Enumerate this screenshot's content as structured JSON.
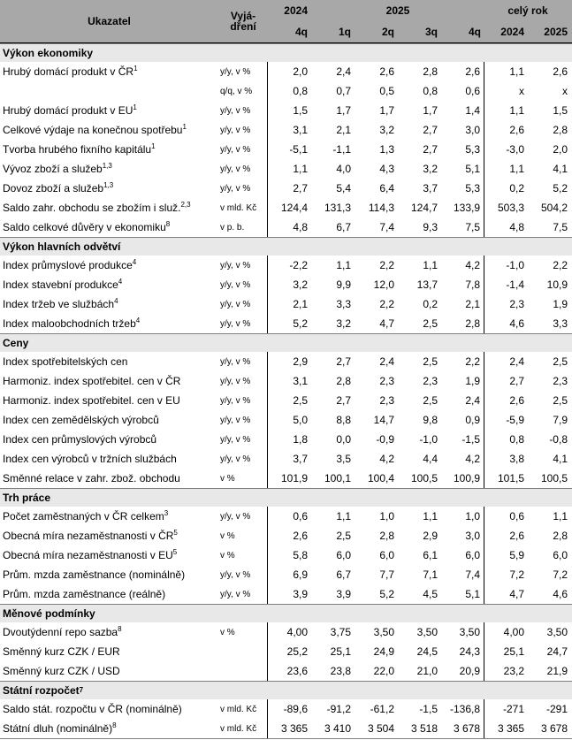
{
  "colors": {
    "header_bg": "#a8a8a8",
    "section_bg": "#e8e8e8",
    "grid_line": "#000000",
    "section_line": "#7f7f7f",
    "text": "#000000"
  },
  "header": {
    "col_indicator": "Ukazatel",
    "col_unit_line1": "Vyjá-",
    "col_unit_line2": "dření",
    "year_left": "2024",
    "year_mid": "2025",
    "year_right": "celý rok",
    "subcols": [
      "4q",
      "1q",
      "2q",
      "3q",
      "4q",
      "2024",
      "2025"
    ]
  },
  "sections": [
    {
      "title": "Výkon ekonomiky",
      "sup": "",
      "rows": [
        {
          "label": "Hrubý domácí produkt v ČR",
          "sup": "1",
          "unit": "y/y, v %",
          "values": [
            "2,0",
            "2,4",
            "2,6",
            "2,8",
            "2,6",
            "1,1",
            "2,6"
          ]
        },
        {
          "label": "",
          "sup": "",
          "unit": "q/q, v %",
          "values": [
            "0,8",
            "0,7",
            "0,5",
            "0,8",
            "0,6",
            "x",
            "x"
          ]
        },
        {
          "label": "Hrubý domácí produkt v EU",
          "sup": "1",
          "unit": "y/y, v %",
          "values": [
            "1,5",
            "1,7",
            "1,7",
            "1,7",
            "1,4",
            "1,1",
            "1,5"
          ]
        },
        {
          "label": "Celkové výdaje na konečnou spotřebu",
          "sup": "1",
          "unit": "y/y, v %",
          "values": [
            "3,1",
            "2,1",
            "3,2",
            "2,7",
            "3,0",
            "2,6",
            "2,8"
          ]
        },
        {
          "label": "Tvorba hrubého fixního kapitálu",
          "sup": "1",
          "unit": "y/y, v %",
          "values": [
            "-5,1",
            "-1,1",
            "1,3",
            "2,7",
            "5,3",
            "-3,0",
            "2,0"
          ]
        },
        {
          "label": "Vývoz zboží a služeb",
          "sup": "1,3",
          "unit": "y/y, v %",
          "values": [
            "1,1",
            "4,0",
            "4,3",
            "3,2",
            "5,1",
            "1,1",
            "4,1"
          ]
        },
        {
          "label": "Dovoz zboží a služeb",
          "sup": "1,3",
          "unit": "y/y, v %",
          "values": [
            "2,7",
            "5,4",
            "6,4",
            "3,7",
            "5,3",
            "0,2",
            "5,2"
          ]
        },
        {
          "label": "Saldo zahr. obchodu se zbožím i služ.",
          "sup": "2,3",
          "unit": "v mld. Kč",
          "values": [
            "124,4",
            "131,3",
            "114,3",
            "124,7",
            "133,9",
            "503,3",
            "504,2"
          ]
        },
        {
          "label": "Saldo celkové důvěry v ekonomiku",
          "sup": "8",
          "unit": "v p. b.",
          "values": [
            "4,8",
            "6,7",
            "7,4",
            "9,3",
            "7,5",
            "4,8",
            "7,5"
          ]
        }
      ]
    },
    {
      "title": "Výkon hlavních odvětví",
      "sup": "",
      "rows": [
        {
          "label": "Index průmyslové produkce",
          "sup": "4",
          "unit": "y/y, v %",
          "values": [
            "-2,2",
            "1,1",
            "2,2",
            "1,1",
            "4,2",
            "-1,0",
            "2,2"
          ]
        },
        {
          "label": "Index stavební produkce",
          "sup": "4",
          "unit": "y/y, v %",
          "values": [
            "3,2",
            "9,9",
            "12,0",
            "13,7",
            "7,8",
            "-1,4",
            "10,9"
          ]
        },
        {
          "label": "Index tržeb ve službách",
          "sup": "4",
          "unit": "y/y, v %",
          "values": [
            "2,1",
            "3,3",
            "2,2",
            "0,2",
            "2,1",
            "2,3",
            "1,9"
          ]
        },
        {
          "label": "Index maloobchodních tržeb",
          "sup": "4",
          "unit": "y/y, v %",
          "values": [
            "5,2",
            "3,2",
            "4,7",
            "2,5",
            "2,8",
            "4,6",
            "3,3"
          ]
        }
      ]
    },
    {
      "title": "Ceny",
      "sup": "",
      "rows": [
        {
          "label": "Index spotřebitelských cen",
          "sup": "",
          "unit": "y/y, v %",
          "values": [
            "2,9",
            "2,7",
            "2,4",
            "2,5",
            "2,2",
            "2,4",
            "2,5"
          ]
        },
        {
          "label": "Harmoniz. index spotřebitel. cen v ČR",
          "sup": "",
          "unit": "y/y, v %",
          "values": [
            "3,1",
            "2,8",
            "2,3",
            "2,3",
            "1,9",
            "2,7",
            "2,3"
          ]
        },
        {
          "label": "Harmoniz. index spotřebitel. cen v EU",
          "sup": "",
          "unit": "y/y, v %",
          "values": [
            "2,5",
            "2,7",
            "2,3",
            "2,5",
            "2,4",
            "2,6",
            "2,5"
          ]
        },
        {
          "label": "Index cen zemědělských výrobců",
          "sup": "",
          "unit": "y/y, v %",
          "values": [
            "5,0",
            "8,8",
            "14,7",
            "9,8",
            "0,9",
            "-5,9",
            "7,9"
          ]
        },
        {
          "label": "Index cen průmyslových výrobců",
          "sup": "",
          "unit": "y/y, v %",
          "values": [
            "1,8",
            "0,0",
            "-0,9",
            "-1,0",
            "-1,5",
            "0,8",
            "-0,8"
          ]
        },
        {
          "label": "Index cen výrobců v tržních službách",
          "sup": "",
          "unit": "y/y, v %",
          "values": [
            "3,7",
            "3,5",
            "4,2",
            "4,4",
            "4,2",
            "3,8",
            "4,1"
          ]
        },
        {
          "label": "Směnné relace v zahr. zbož. obchodu",
          "sup": "",
          "unit": "v %",
          "values": [
            "101,9",
            "100,1",
            "100,4",
            "100,5",
            "100,9",
            "101,5",
            "100,5"
          ]
        }
      ]
    },
    {
      "title": "Trh práce",
      "sup": "",
      "rows": [
        {
          "label": "Počet zaměstnaných v ČR celkem",
          "sup": "3",
          "unit": "y/y, v %",
          "values": [
            "0,6",
            "1,1",
            "1,0",
            "1,1",
            "1,0",
            "0,6",
            "1,1"
          ]
        },
        {
          "label": "Obecná míra nezaměstnanosti v ČR",
          "sup": "5",
          "unit": "v %",
          "values": [
            "2,6",
            "2,5",
            "2,8",
            "2,9",
            "3,0",
            "2,6",
            "2,8"
          ]
        },
        {
          "label": "Obecná míra nezaměstnanosti v EU",
          "sup": "5",
          "unit": "v %",
          "values": [
            "5,8",
            "6,0",
            "6,0",
            "6,1",
            "6,0",
            "5,9",
            "6,0"
          ]
        },
        {
          "label": "Prům. mzda zaměstnance (nominálně)",
          "sup": "",
          "unit": "y/y, v %",
          "values": [
            "6,9",
            "6,7",
            "7,7",
            "7,1",
            "7,4",
            "7,2",
            "7,2"
          ]
        },
        {
          "label": "Prům. mzda zaměstnance (reálně)",
          "sup": "",
          "unit": "y/y, v %",
          "values": [
            "3,9",
            "3,9",
            "5,2",
            "4,5",
            "5,1",
            "4,7",
            "4,6"
          ]
        }
      ]
    },
    {
      "title": "Měnové podmínky",
      "sup": "",
      "rows": [
        {
          "label": "Dvoutýdenní repo sazba",
          "sup": "8",
          "unit": "v %",
          "values": [
            "4,00",
            "3,75",
            "3,50",
            "3,50",
            "3,50",
            "4,00",
            "3,50"
          ]
        },
        {
          "label": "Směnný kurz CZK / EUR",
          "sup": "",
          "unit": "",
          "values": [
            "25,2",
            "25,1",
            "24,9",
            "24,5",
            "24,3",
            "25,1",
            "24,7"
          ]
        },
        {
          "label": "Směnný kurz CZK / USD",
          "sup": "",
          "unit": "",
          "values": [
            "23,6",
            "23,8",
            "22,0",
            "21,0",
            "20,9",
            "23,2",
            "21,9"
          ]
        }
      ]
    },
    {
      "title": "Státní rozpočet",
      "sup": "7",
      "rows": [
        {
          "label": "Saldo stát. rozpočtu v ČR (nominálně)",
          "sup": "",
          "unit": "v mld. Kč",
          "values": [
            "-89,6",
            "-91,2",
            "-61,2",
            "-1,5",
            "-136,8",
            "-271",
            "-291"
          ]
        },
        {
          "label": "Státní dluh (nominálně)",
          "sup": "8",
          "unit": "v mld. Kč",
          "values": [
            "3 365",
            "3 410",
            "3 504",
            "3 518",
            "3 678",
            "3 365",
            "3 678"
          ]
        }
      ]
    }
  ]
}
